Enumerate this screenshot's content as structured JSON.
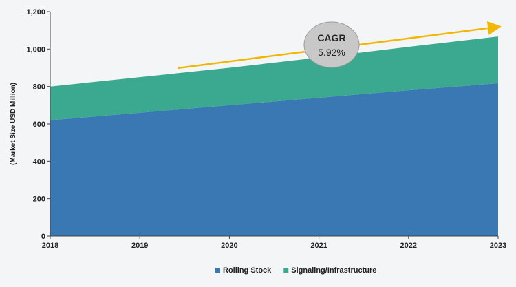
{
  "chart_data": {
    "type": "area",
    "stacked": true,
    "x": [
      "2018",
      "2019",
      "2020",
      "2021",
      "2022",
      "2023"
    ],
    "series": [
      {
        "name": "Rolling Stock",
        "values": [
          620,
          660,
          700,
          740,
          780,
          817
        ],
        "color": "#3a78b4"
      },
      {
        "name": "Signaling/Infrastructure",
        "values": [
          180,
          190,
          200,
          215,
          232,
          250
        ],
        "color": "#3ba98f"
      }
    ],
    "ylabel": "(Market Size USD Million)",
    "xlabel": "",
    "ylim": [
      0,
      1200
    ],
    "yticks": [
      0,
      200,
      400,
      600,
      800,
      1000,
      1200
    ],
    "ytick_labels": [
      "0",
      "200",
      "400",
      "600",
      "800",
      "1,000",
      "1,200"
    ],
    "grid": false,
    "legend_position": "bottom",
    "annotation": {
      "title": "CAGR",
      "value": "5.92%",
      "arrow_color": "#f2b705",
      "bubble_color": "#c8c8c8"
    }
  }
}
